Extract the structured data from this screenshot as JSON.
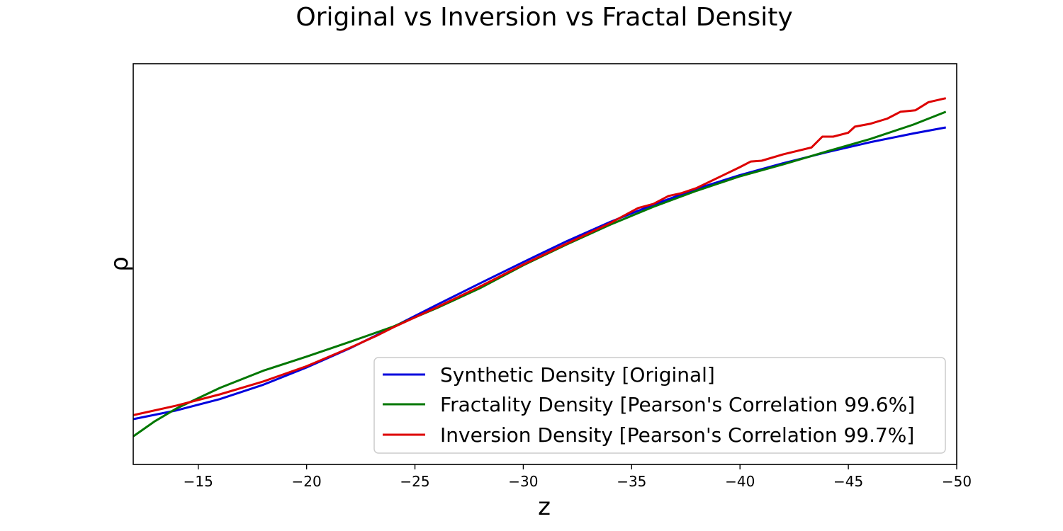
{
  "chart_data": {
    "type": "line",
    "title": "Original vs Inversion vs Fractal Density",
    "xlabel": "z",
    "ylabel": "ρ",
    "xlim": [
      -12,
      -50
    ],
    "ylim": [
      0,
      1
    ],
    "x_axis_reversed": true,
    "y_ticks_shown": false,
    "grid": false,
    "legend_position": "lower-right",
    "x_ticks": [
      -15,
      -20,
      -25,
      -30,
      -35,
      -40,
      -45,
      -50
    ],
    "x_tick_labels": [
      "−15",
      "−20",
      "−25",
      "−30",
      "−35",
      "−40",
      "−45",
      "−50"
    ],
    "series": [
      {
        "name": "Synthetic Density [Original]",
        "color": "#0000dd",
        "x": [
          -12,
          -14,
          -16,
          -18,
          -20,
          -22,
          -24,
          -26,
          -28,
          -30,
          -32,
          -34,
          -36,
          -38,
          -40,
          -42,
          -44,
          -46,
          -48,
          -49.5
        ],
        "y": [
          0.113,
          0.135,
          0.163,
          0.199,
          0.242,
          0.29,
          0.343,
          0.398,
          0.452,
          0.505,
          0.557,
          0.605,
          0.648,
          0.688,
          0.722,
          0.752,
          0.779,
          0.804,
          0.826,
          0.841
        ]
      },
      {
        "name": "Fractality Density [Pearson's Correlation 99.6%]",
        "color": "#007700",
        "x": [
          -12,
          -13,
          -14,
          -16,
          -18,
          -20,
          -22,
          -24,
          -26,
          -28,
          -30,
          -32,
          -34,
          -36,
          -38,
          -40,
          -42,
          -44,
          -46,
          -48,
          -49.5
        ],
        "y": [
          0.07,
          0.108,
          0.14,
          0.191,
          0.234,
          0.269,
          0.306,
          0.344,
          0.39,
          0.44,
          0.497,
          0.549,
          0.598,
          0.643,
          0.683,
          0.719,
          0.749,
          0.781,
          0.812,
          0.848,
          0.88
        ]
      },
      {
        "name": "Inversion Density [Pearson's Correlation 99.7%]",
        "color": "#dd0000",
        "x": [
          -12,
          -14,
          -16,
          -18,
          -20,
          -22,
          -23.3,
          -24,
          -26,
          -28,
          -30,
          -32,
          -34,
          -35.3,
          -36,
          -36.7,
          -37.3,
          -38,
          -40,
          -40.5,
          -41,
          -42,
          -43.3,
          -43.8,
          -44.3,
          -45,
          -45.3,
          -46,
          -46.8,
          -47.4,
          -48.1,
          -48.7,
          -49.5
        ],
        "y": [
          0.123,
          0.147,
          0.175,
          0.207,
          0.245,
          0.291,
          0.323,
          0.342,
          0.392,
          0.444,
          0.499,
          0.551,
          0.602,
          0.64,
          0.65,
          0.67,
          0.677,
          0.69,
          0.742,
          0.756,
          0.758,
          0.774,
          0.791,
          0.818,
          0.818,
          0.828,
          0.843,
          0.85,
          0.863,
          0.88,
          0.884,
          0.904,
          0.914
        ]
      }
    ]
  }
}
